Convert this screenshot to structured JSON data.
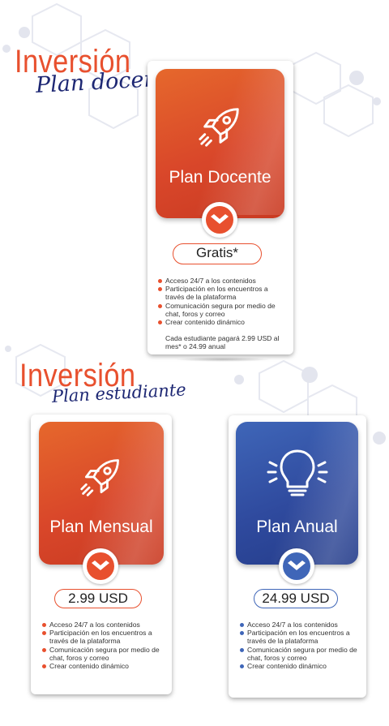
{
  "colors": {
    "orange": "#e8502e",
    "blue": "#3f66b8",
    "navy": "#1d2773"
  },
  "section_docente": {
    "heading": "Inversión",
    "subheading": "Plan docente",
    "card": {
      "title": "Plan Docente",
      "icon": "rocket-icon",
      "price": "Gratis*",
      "features": [
        "Acceso 24/7 a los contenidos",
        "Participación en los encuentros a través de la plataforma",
        "Comunicación segura por medio de chat, foros y correo",
        "Crear contenido dinámico"
      ],
      "note": "Cada estudiante pagará 2.99 USD al mes* o 24.99 anual"
    }
  },
  "section_estudiante": {
    "heading": "Inversión",
    "subheading": "Plan estudiante",
    "cards": [
      {
        "title": "Plan Mensual",
        "icon": "rocket-icon",
        "price": "2.99 USD",
        "features": [
          "Acceso 24/7 a los contenidos",
          "Participación en los encuentros a través de la plataforma",
          "Comunicación segura por medio de chat, foros y correo",
          "Crear contenido dinámico"
        ]
      },
      {
        "title": "Plan Anual",
        "icon": "lightbulb-icon",
        "price": "24.99 USD",
        "features": [
          "Acceso 24/7 a los contenidos",
          "Participación en los encuentros a través de la plataforma",
          "Comunicación segura por medio de chat, foros y correo",
          "Crear contenido dinámico"
        ]
      }
    ]
  }
}
